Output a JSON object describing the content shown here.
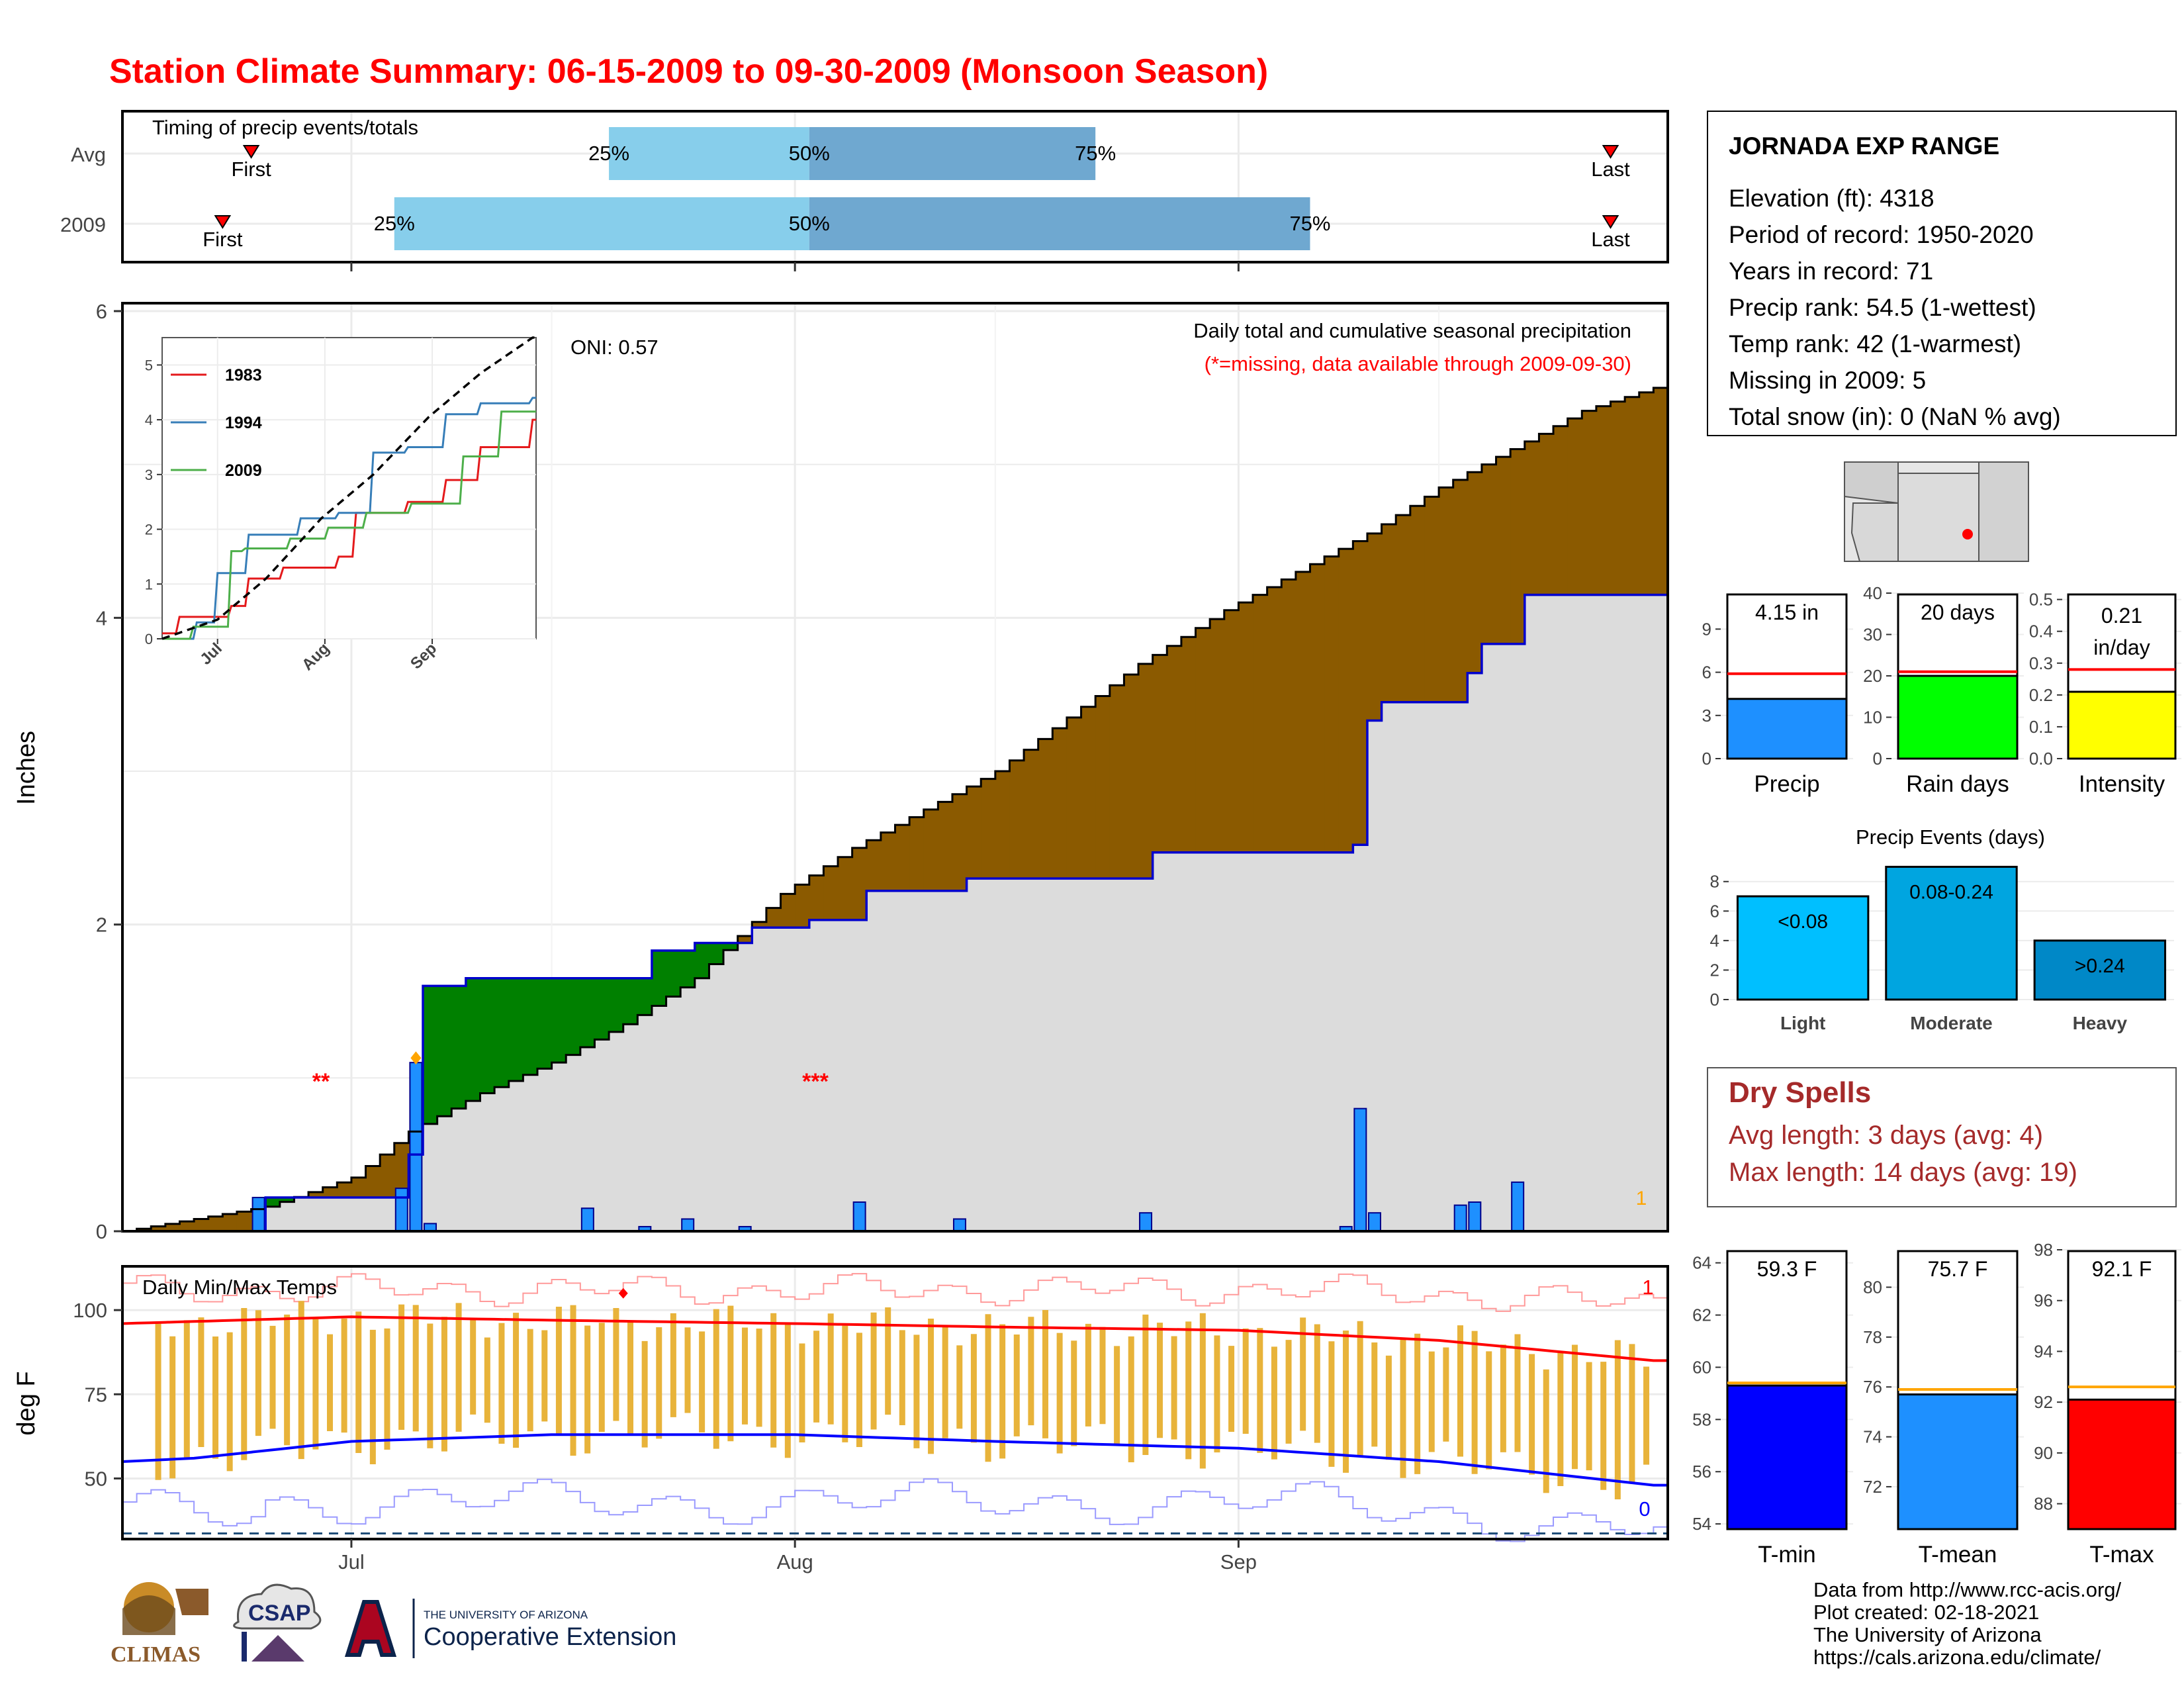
{
  "title": "Station Climate Summary: 06-15-2009 to 09-30-2009 (Monsoon Season)",
  "timing": {
    "label": "Timing of precip events/totals",
    "rows": [
      "Avg",
      "2009"
    ],
    "first_label": "First",
    "last_label": "Last",
    "pct_labels": [
      "25%",
      "50%",
      "75%"
    ],
    "avg": {
      "first": "2009-06-24",
      "p25": "2009-07-19",
      "p50": "2009-08-02",
      "p75": "2009-08-22",
      "last": "2009-09-27"
    },
    "y2009": {
      "first": "2009-06-22",
      "p25": "2009-07-04",
      "p50": "2009-08-02",
      "p75": "2009-09-06",
      "last": "2009-09-27"
    }
  },
  "station": {
    "name": "JORNADA EXP RANGE",
    "lines": [
      "Elevation (ft): 4318",
      "Period of record: 1950-2020",
      "Years in record: 71",
      "Precip rank: 54.5 (1-wettest)",
      "Temp rank: 42 (1-warmest)",
      "Missing in 2009: 5",
      "Total snow (in): 0 (NaN % avg)"
    ]
  },
  "main": {
    "ylabel": "Inches",
    "oni": "ONI: 0.57",
    "subtitle": "Daily total and cumulative seasonal precipitation",
    "missing_note": "(*=missing, data available through 2009-09-30)",
    "missing_marks": [
      "**",
      "***"
    ],
    "record_count": "1",
    "x_months": [
      "Jul",
      "Aug",
      "Sep"
    ]
  },
  "temps": {
    "ylabel": "deg F",
    "label": "Daily Min/Max Temps",
    "record_high_count": "1",
    "record_low_count": "0"
  },
  "summary_bars": {
    "precip": {
      "label": "Precip",
      "value_label": "4.15 in",
      "value": 4.15,
      "avg": 5.9,
      "ylim": [
        0,
        11.5
      ],
      "ticks": [
        0,
        3,
        6,
        9
      ],
      "color": "#1e90ff"
    },
    "raindays": {
      "label": "Rain days",
      "value_label": "20 days",
      "value": 20,
      "avg": 21,
      "ylim": [
        0,
        40
      ],
      "ticks": [
        0,
        10,
        20,
        30,
        40
      ],
      "color": "#00ff00"
    },
    "intensity": {
      "label": "Intensity",
      "value_label": "0.21 in/day",
      "value": 0.21,
      "avg": 0.28,
      "ylim": [
        0,
        0.52
      ],
      "ticks": [
        0.0,
        0.1,
        0.2,
        0.3,
        0.4,
        0.5
      ],
      "color": "#ffff00"
    }
  },
  "events": {
    "title": "Precip Events (days)",
    "categories": [
      "Light",
      "Moderate",
      "Heavy"
    ],
    "bar_labels": [
      "<0.08",
      "0.08-0.24",
      ">0.24"
    ],
    "values": [
      7,
      9,
      4
    ],
    "colors": [
      "#00bfff",
      "#00a5e0",
      "#0088c7"
    ],
    "ticks": [
      0,
      2,
      4,
      6,
      8
    ]
  },
  "dry_spells": {
    "title": "Dry Spells",
    "avg_line": "Avg length: 3 days (avg: 4)",
    "max_line": "Max length: 14 days (avg: 19)"
  },
  "temp_bars": {
    "tmin": {
      "label": "T-min",
      "value_label": "59.3 F",
      "value": 59.3,
      "avg": 59.4,
      "ylim": [
        53.8,
        64.5
      ],
      "ticks": [
        54,
        56,
        58,
        60,
        62,
        64
      ],
      "color": "#0000ff"
    },
    "tmean": {
      "label": "T-mean",
      "value_label": "75.7 F",
      "value": 75.7,
      "avg": 75.9,
      "ylim": [
        70.3,
        81.5
      ],
      "ticks": [
        72,
        74,
        76,
        78,
        80
      ],
      "color": "#1e90ff"
    },
    "tmax": {
      "label": "T-max",
      "value_label": "92.1 F",
      "value": 92.1,
      "avg": 92.6,
      "ylim": [
        87.0,
        98.0
      ],
      "ticks": [
        88,
        90,
        92,
        94,
        96,
        98
      ],
      "color": "#ff0000"
    }
  },
  "footer": [
    "Data from http://www.rcc-acis.org/",
    "Plot created: 02-18-2021",
    "The University of Arizona",
    "https://cals.arizona.edu/climate/"
  ],
  "logos": {
    "climas": "CLIMAS",
    "csap": "CSAP",
    "ua_small": "THE UNIVERSITY OF ARIZONA",
    "ua_large": "Cooperative Extension"
  },
  "chart_data": [
    {
      "type": "area",
      "name": "cumulative_precip",
      "ylim": [
        0,
        6
      ],
      "xlim": [
        "2009-06-15",
        "2009-09-30"
      ],
      "yticks": [
        0,
        2,
        4,
        6
      ],
      "series": [
        {
          "name": "avg_cumulative",
          "points": [
            [
              "2009-06-15",
              0.0
            ],
            [
              "2009-06-20",
              0.08
            ],
            [
              "2009-06-25",
              0.16
            ],
            [
              "2009-07-01",
              0.35
            ],
            [
              "2009-07-05",
              0.65
            ],
            [
              "2009-07-10",
              0.9
            ],
            [
              "2009-07-15",
              1.1
            ],
            [
              "2009-07-20",
              1.35
            ],
            [
              "2009-07-25",
              1.65
            ],
            [
              "2009-07-31",
              2.2
            ],
            [
              "2009-08-05",
              2.5
            ],
            [
              "2009-08-10",
              2.75
            ],
            [
              "2009-08-15",
              3.0
            ],
            [
              "2009-08-20",
              3.35
            ],
            [
              "2009-08-25",
              3.7
            ],
            [
              "2009-08-31",
              4.05
            ],
            [
              "2009-09-05",
              4.3
            ],
            [
              "2009-09-10",
              4.55
            ],
            [
              "2009-09-15",
              4.85
            ],
            [
              "2009-09-20",
              5.1
            ],
            [
              "2009-09-25",
              5.35
            ],
            [
              "2009-09-30",
              5.5
            ]
          ]
        },
        {
          "name": "2009_cumulative",
          "points": [
            [
              "2009-06-15",
              0.0
            ],
            [
              "2009-06-24",
              0.0
            ],
            [
              "2009-06-25",
              0.22
            ],
            [
              "2009-07-04",
              0.22
            ],
            [
              "2009-07-05",
              0.5
            ],
            [
              "2009-07-06",
              1.6
            ],
            [
              "2009-07-08",
              1.6
            ],
            [
              "2009-07-09",
              1.65
            ],
            [
              "2009-07-21",
              1.65
            ],
            [
              "2009-07-22",
              1.83
            ],
            [
              "2009-07-24",
              1.83
            ],
            [
              "2009-07-25",
              1.88
            ],
            [
              "2009-07-28",
              1.88
            ],
            [
              "2009-07-29",
              1.98
            ],
            [
              "2009-08-01",
              1.98
            ],
            [
              "2009-08-02",
              2.03
            ],
            [
              "2009-08-05",
              2.03
            ],
            [
              "2009-08-06",
              2.22
            ],
            [
              "2009-08-12",
              2.22
            ],
            [
              "2009-08-13",
              2.3
            ],
            [
              "2009-08-25",
              2.3
            ],
            [
              "2009-08-26",
              2.47
            ],
            [
              "2009-09-08",
              2.47
            ],
            [
              "2009-09-09",
              2.52
            ],
            [
              "2009-09-10",
              3.33
            ],
            [
              "2009-09-11",
              3.45
            ],
            [
              "2009-09-16",
              3.45
            ],
            [
              "2009-09-17",
              3.64
            ],
            [
              "2009-09-18",
              3.83
            ],
            [
              "2009-09-20",
              3.83
            ],
            [
              "2009-09-21",
              4.15
            ],
            [
              "2009-09-30",
              4.15
            ]
          ]
        }
      ],
      "daily_bars": [
        [
          "2009-06-24",
          0.22
        ],
        [
          "2009-07-04",
          0.28
        ],
        [
          "2009-07-05",
          1.1
        ],
        [
          "2009-07-06",
          0.05
        ],
        [
          "2009-07-17",
          0.15
        ],
        [
          "2009-07-21",
          0.03
        ],
        [
          "2009-07-24",
          0.08
        ],
        [
          "2009-07-28",
          0.03
        ],
        [
          "2009-08-05",
          0.19
        ],
        [
          "2009-08-12",
          0.08
        ],
        [
          "2009-08-25",
          0.12
        ],
        [
          "2009-09-08",
          0.03
        ],
        [
          "2009-09-09",
          0.8
        ],
        [
          "2009-09-10",
          0.12
        ],
        [
          "2009-09-16",
          0.17
        ],
        [
          "2009-09-17",
          0.19
        ],
        [
          "2009-09-20",
          0.32
        ]
      ]
    },
    {
      "type": "line",
      "name": "inset_cumulative",
      "ylim": [
        0,
        5.5
      ],
      "yticks": [
        0,
        1,
        2,
        3,
        4,
        5
      ],
      "x_labels": [
        "Jul",
        "Aug",
        "Sep"
      ],
      "legend_position": "top-left",
      "series": [
        {
          "name": "1983",
          "color": "#e41a1c",
          "points": [
            [
              "2009-06-15",
              0.1
            ],
            [
              "2009-06-20",
              0.4
            ],
            [
              "2009-07-05",
              0.6
            ],
            [
              "2009-07-10",
              1.1
            ],
            [
              "2009-07-20",
              1.3
            ],
            [
              "2009-08-05",
              1.5
            ],
            [
              "2009-08-10",
              2.3
            ],
            [
              "2009-08-25",
              2.5
            ],
            [
              "2009-09-05",
              2.9
            ],
            [
              "2009-09-15",
              3.5
            ],
            [
              "2009-09-30",
              4.0
            ]
          ]
        },
        {
          "name": "1994",
          "color": "#377eb8",
          "points": [
            [
              "2009-06-15",
              0.0
            ],
            [
              "2009-06-25",
              0.3
            ],
            [
              "2009-07-01",
              1.2
            ],
            [
              "2009-07-10",
              1.9
            ],
            [
              "2009-07-25",
              2.2
            ],
            [
              "2009-08-05",
              2.3
            ],
            [
              "2009-08-15",
              3.4
            ],
            [
              "2009-08-25",
              3.5
            ],
            [
              "2009-09-05",
              4.1
            ],
            [
              "2009-09-15",
              4.3
            ],
            [
              "2009-09-30",
              4.4
            ]
          ]
        },
        {
          "name": "2009",
          "color": "#4daf4a",
          "points": [
            [
              "2009-06-15",
              0.0
            ],
            [
              "2009-06-24",
              0.22
            ],
            [
              "2009-07-05",
              1.6
            ],
            [
              "2009-07-09",
              1.65
            ],
            [
              "2009-07-22",
              1.83
            ],
            [
              "2009-08-02",
              2.03
            ],
            [
              "2009-08-13",
              2.3
            ],
            [
              "2009-08-26",
              2.47
            ],
            [
              "2009-09-10",
              3.33
            ],
            [
              "2009-09-21",
              4.15
            ],
            [
              "2009-09-30",
              4.15
            ]
          ]
        },
        {
          "name": "avg",
          "color": "#000000",
          "dashed": true,
          "points": [
            [
              "2009-06-15",
              0.0
            ],
            [
              "2009-07-01",
              0.35
            ],
            [
              "2009-07-15",
              1.1
            ],
            [
              "2009-07-31",
              2.2
            ],
            [
              "2009-08-15",
              3.0
            ],
            [
              "2009-08-31",
              4.05
            ],
            [
              "2009-09-15",
              4.85
            ],
            [
              "2009-09-30",
              5.5
            ]
          ]
        }
      ]
    },
    {
      "type": "line",
      "name": "daily_temps",
      "ylim": [
        32,
        113
      ],
      "yticks": [
        50,
        75,
        100
      ],
      "series": [
        {
          "name": "avg_max",
          "color": "#ff0000",
          "points": [
            [
              "2009-06-15",
              96
            ],
            [
              "2009-07-01",
              98
            ],
            [
              "2009-07-15",
              97
            ],
            [
              "2009-08-01",
              96
            ],
            [
              "2009-08-15",
              95
            ],
            [
              "2009-09-01",
              94
            ],
            [
              "2009-09-15",
              91
            ],
            [
              "2009-09-30",
              85
            ]
          ]
        },
        {
          "name": "avg_min",
          "color": "#0000ff",
          "points": [
            [
              "2009-06-15",
              55
            ],
            [
              "2009-06-20",
              56
            ],
            [
              "2009-07-01",
              61
            ],
            [
              "2009-07-15",
              63
            ],
            [
              "2009-08-01",
              63
            ],
            [
              "2009-08-15",
              61
            ],
            [
              "2009-09-01",
              59
            ],
            [
              "2009-09-15",
              55
            ],
            [
              "2009-09-30",
              48
            ]
          ]
        }
      ]
    }
  ]
}
